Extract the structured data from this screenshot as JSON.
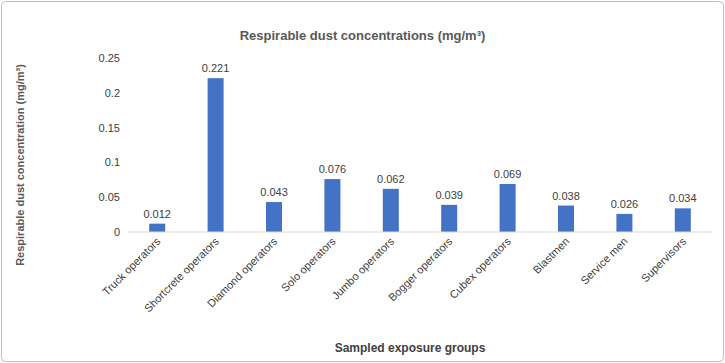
{
  "chart_data": {
    "type": "bar",
    "title": "Respirable dust concentrations (mg/m³)",
    "x_label": "Sampled exposure groups",
    "y_label": "Respirable dust concentration (mg/m³)",
    "categories": [
      "Truck operators",
      "Shortcrete operators",
      "Diamond operators",
      "Solo operators",
      "Jumbo operators",
      "Bogger operators",
      "Cubex operators",
      "Blastmen",
      "Service men",
      "Supervisors"
    ],
    "values": [
      0.012,
      0.221,
      0.043,
      0.076,
      0.062,
      0.039,
      0.069,
      0.038,
      0.026,
      0.034
    ],
    "color": "#4472c4",
    "ylim": [
      0,
      0.25
    ],
    "yticks": [
      0,
      0.05,
      0.1,
      0.15,
      0.2,
      0.25
    ],
    "grid": false,
    "data_labels": true
  }
}
